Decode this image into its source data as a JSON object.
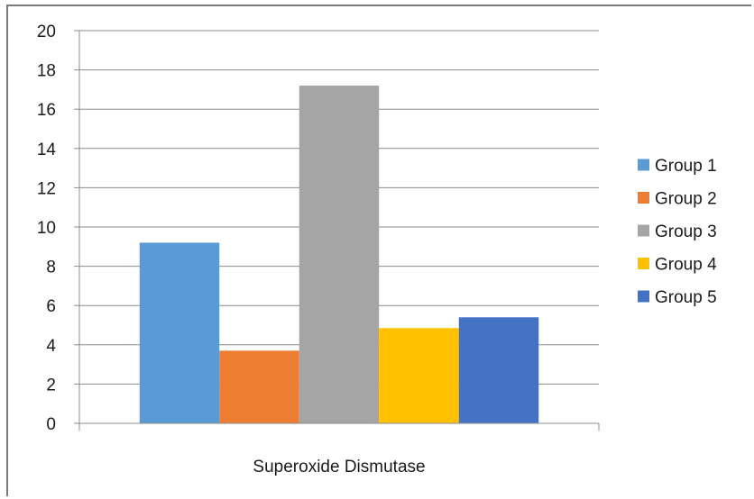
{
  "chart_data": {
    "type": "bar",
    "categories": [
      "Superoxide Dismutase"
    ],
    "series": [
      {
        "name": "Group 1",
        "values": [
          9.2
        ],
        "color": "#5b9bd5"
      },
      {
        "name": "Group 2",
        "values": [
          3.7
        ],
        "color": "#ed7d31"
      },
      {
        "name": "Group 3",
        "values": [
          17.2
        ],
        "color": "#a5a5a5"
      },
      {
        "name": "Group 4",
        "values": [
          4.85
        ],
        "color": "#ffc000"
      },
      {
        "name": "Group 5",
        "values": [
          5.4
        ],
        "color": "#4472c4"
      }
    ],
    "title": "",
    "xlabel": "",
    "ylabel": "",
    "ylim": [
      0,
      20
    ],
    "yticks": [
      "0",
      "2",
      "4",
      "6",
      "8",
      "10",
      "12",
      "14",
      "16",
      "18",
      "20"
    ],
    "grid": true,
    "legend": "right"
  }
}
